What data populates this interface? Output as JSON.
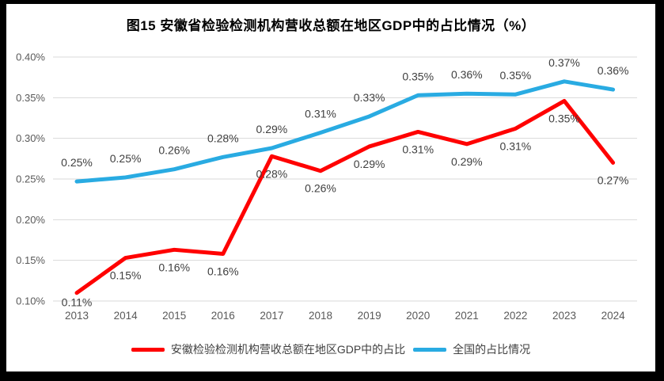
{
  "chart_data": {
    "type": "line",
    "title": "图15 安徽省检验检测机构营收总额在地区GDP中的占比情况（%）",
    "x": [
      "2013",
      "2014",
      "2015",
      "2016",
      "2017",
      "2018",
      "2019",
      "2020",
      "2021",
      "2022",
      "2023",
      "2024"
    ],
    "ylim": [
      0.1,
      0.4
    ],
    "yticks": {
      "values": [
        0.1,
        0.15,
        0.2,
        0.25,
        0.3,
        0.35,
        0.4
      ],
      "labels": [
        "0.10%",
        "0.15%",
        "0.20%",
        "0.25%",
        "0.30%",
        "0.35%",
        "0.40%"
      ]
    },
    "grid": {
      "horizontal": true,
      "vertical": false,
      "color": "#D9D9D9"
    },
    "legend_position": "bottom",
    "series": [
      {
        "name": "安徽检验检测机构营收总额在地区GDP中的占比",
        "color": "#FF0000",
        "values": [
          0.11,
          0.15,
          0.16,
          0.16,
          0.28,
          0.26,
          0.29,
          0.31,
          0.29,
          0.31,
          0.35,
          0.27
        ],
        "plot_values": [
          0.11,
          0.153,
          0.163,
          0.158,
          0.278,
          0.26,
          0.29,
          0.308,
          0.293,
          0.312,
          0.346,
          0.27
        ],
        "point_labels": [
          "0.11%",
          "0.15%",
          "0.16%",
          "0.16%",
          "0.28%",
          "0.26%",
          "0.29%",
          "0.31%",
          "0.29%",
          "0.31%",
          "0.35%",
          "0.27%"
        ],
        "label_side": "below"
      },
      {
        "name": "全国的占比情况",
        "color": "#29ABE2",
        "values": [
          0.25,
          0.25,
          0.26,
          0.28,
          0.29,
          0.31,
          0.33,
          0.35,
          0.36,
          0.35,
          0.37,
          0.36
        ],
        "plot_values": [
          0.247,
          0.252,
          0.262,
          0.277,
          0.288,
          0.307,
          0.327,
          0.353,
          0.355,
          0.354,
          0.37,
          0.36
        ],
        "point_labels": [
          "0.25%",
          "0.25%",
          "0.26%",
          "0.28%",
          "0.29%",
          "0.31%",
          "0.33%",
          "0.35%",
          "0.36%",
          "0.35%",
          "0.37%",
          "0.36%"
        ],
        "label_side": "above"
      }
    ],
    "text_colors": {
      "ticks": "#595959",
      "data_labels": "#3F3F3F",
      "title": "#000000",
      "legend": "#404040"
    }
  }
}
